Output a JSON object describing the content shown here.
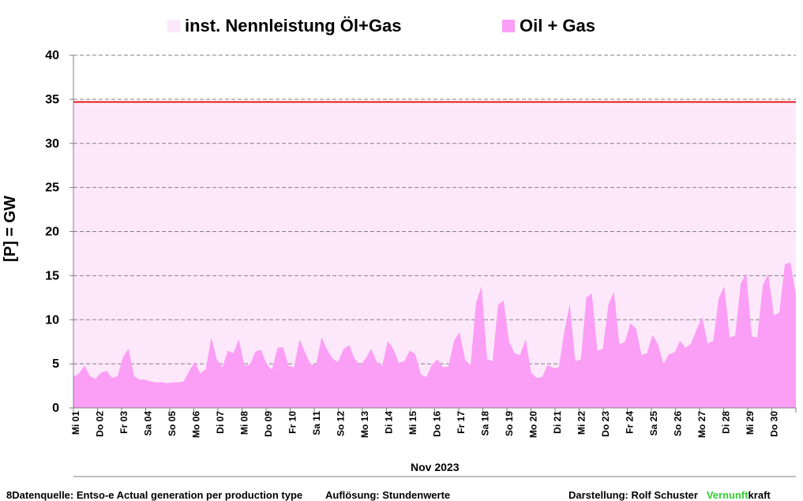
{
  "legend": {
    "capacity_label": "inst. Nennleistung Öl+Gas",
    "generation_label": "Oil + Gas"
  },
  "colors": {
    "capacity_fill": "#fde8fb",
    "generation_fill": "#fb9ef5",
    "capacity_line": "#e02020"
  },
  "footer": {
    "source": "8Datenquelle: Entso-e  Actual generation per production type",
    "resolution": "Auflösung: Stundenwerte",
    "author_prefix": "Darstellung:  Rolf Schuster",
    "brand_green": "Vernunft",
    "brand_rest": "kraft"
  },
  "chart_data": {
    "type": "area",
    "ylabel": "[P]  = GW",
    "xlabel": "Nov 2023",
    "ylim": [
      0,
      40
    ],
    "yticks": [
      0,
      5,
      10,
      15,
      20,
      25,
      30,
      35,
      40
    ],
    "grid": "horizontal dashed",
    "legend_position": "top",
    "x_tick_labels": [
      "Mi 01",
      "Do 02",
      "Fr 03",
      "Sa 04",
      "So 05",
      "Mo 06",
      "Di 07",
      "Mi 08",
      "Do 09",
      "Fr 10",
      "Sa 11",
      "So 12",
      "Mo 13",
      "Di 14",
      "Mi 15",
      "Do 16",
      "Fr 17",
      "Sa 18",
      "So 19",
      "Mo 20",
      "Di 21",
      "Mi 22",
      "Do 23",
      "Fr 24",
      "Sa 25",
      "So 26",
      "Mo 27",
      "Di 28",
      "Mi 29",
      "Do 30"
    ],
    "series": [
      {
        "name": "inst. Nennleistung Öl+Gas",
        "constant_value": 34.7
      },
      {
        "name": "Oil + Gas",
        "resolution": "6h",
        "values": [
          3.5,
          3.9,
          4.8,
          3.6,
          3.3,
          4.0,
          4.2,
          3.4,
          3.6,
          5.8,
          6.7,
          3.6,
          3.2,
          3.2,
          3.0,
          2.9,
          2.9,
          2.8,
          2.9,
          2.9,
          3.0,
          4.2,
          5.2,
          3.9,
          4.4,
          8.0,
          5.5,
          4.6,
          6.5,
          6.2,
          7.8,
          4.8,
          4.9,
          6.4,
          6.6,
          5.0,
          4.3,
          6.8,
          6.9,
          4.8,
          4.6,
          7.8,
          6.3,
          4.9,
          4.9,
          8.0,
          6.6,
          5.6,
          5.2,
          6.7,
          7.1,
          5.6,
          4.8,
          5.6,
          6.7,
          5.2,
          4.8,
          7.6,
          6.7,
          5.1,
          5.3,
          6.5,
          6.1,
          3.8,
          3.5,
          4.9,
          5.5,
          4.6,
          4.7,
          7.6,
          8.6,
          5.5,
          4.8,
          11.9,
          13.8,
          5.5,
          5.3,
          11.7,
          12.2,
          7.5,
          6.2,
          6.0,
          7.8,
          4.0,
          3.4,
          3.5,
          4.9,
          4.5,
          4.6,
          8.6,
          11.8,
          5.3,
          5.5,
          12.5,
          13.0,
          6.5,
          6.7,
          11.7,
          13.2,
          7.2,
          7.5,
          9.6,
          9.0,
          6.0,
          6.2,
          8.3,
          7.2,
          5.0,
          6.1,
          6.3,
          7.6,
          6.8,
          7.3,
          8.9,
          10.3,
          7.3,
          7.6,
          12.4,
          13.8,
          8.0,
          8.2,
          14.1,
          15.3,
          8.1,
          8.0,
          13.9,
          15.2,
          10.5,
          10.8,
          16.3,
          16.5,
          12.8
        ]
      }
    ]
  }
}
